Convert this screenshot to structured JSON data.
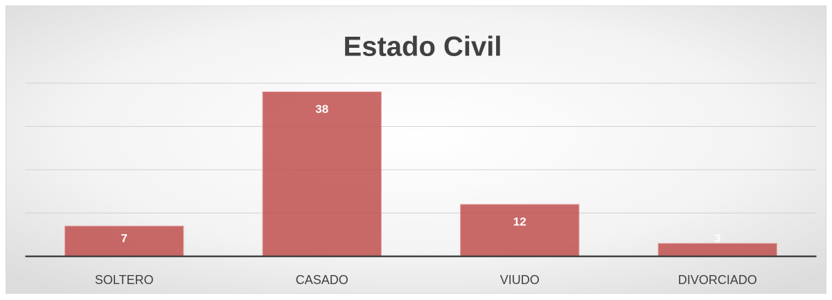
{
  "chart_data": {
    "type": "bar",
    "title": "Estado Civil",
    "categories": [
      "SOLTERO",
      "CASADO",
      "VIUDO",
      "DIVORCIADO"
    ],
    "values": [
      7,
      38,
      12,
      3
    ],
    "color": "#c0504d",
    "ylim": [
      0,
      40
    ],
    "yticks": [
      0,
      10,
      20,
      30,
      40
    ],
    "grid": true
  }
}
